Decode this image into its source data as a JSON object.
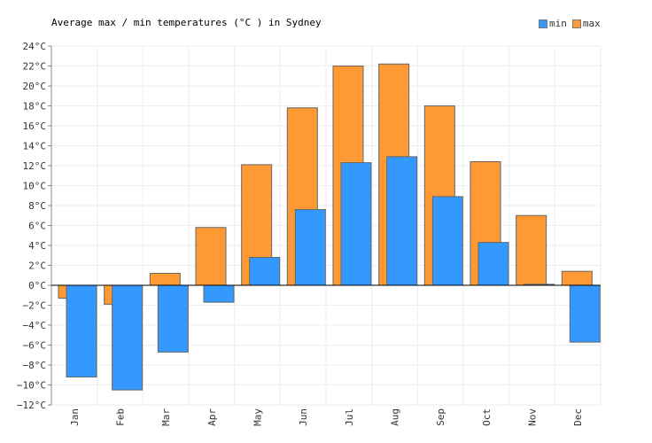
{
  "chart_title": "Average max / min temperatures (°C ) in Sydney",
  "legend": [
    {
      "label": "min",
      "color": "#3399ff"
    },
    {
      "label": "max",
      "color": "#ff9933"
    }
  ],
  "chart_data": {
    "type": "bar",
    "title": "Average max / min temperatures (°C ) in Sydney",
    "xlabel": "",
    "ylabel": "",
    "categories": [
      "Jan",
      "Feb",
      "Mar",
      "Apr",
      "May",
      "Jun",
      "Jul",
      "Aug",
      "Sep",
      "Oct",
      "Nov",
      "Dec"
    ],
    "series": [
      {
        "name": "min",
        "color": "#3399ff",
        "values": [
          -9.2,
          -10.5,
          -6.7,
          -1.7,
          2.8,
          7.6,
          12.3,
          12.9,
          8.9,
          4.3,
          0.1,
          -5.7
        ]
      },
      {
        "name": "max",
        "color": "#ff9933",
        "values": [
          -1.3,
          -1.9,
          1.2,
          5.8,
          12.1,
          17.8,
          22.0,
          22.2,
          18.0,
          12.4,
          7.0,
          1.4
        ]
      }
    ],
    "ylim": [
      -12,
      24
    ],
    "yticks": [
      "24°C",
      "22°C",
      "20°C",
      "18°C",
      "16°C",
      "14°C",
      "12°C",
      "10°C",
      "8°C",
      "6°C",
      "4°C",
      "2°C",
      "0°C",
      "−2°C",
      "−4°C",
      "−6°C",
      "−8°C",
      "−10°C",
      "−12°C"
    ],
    "grid": true,
    "legend_position": "top-right"
  }
}
